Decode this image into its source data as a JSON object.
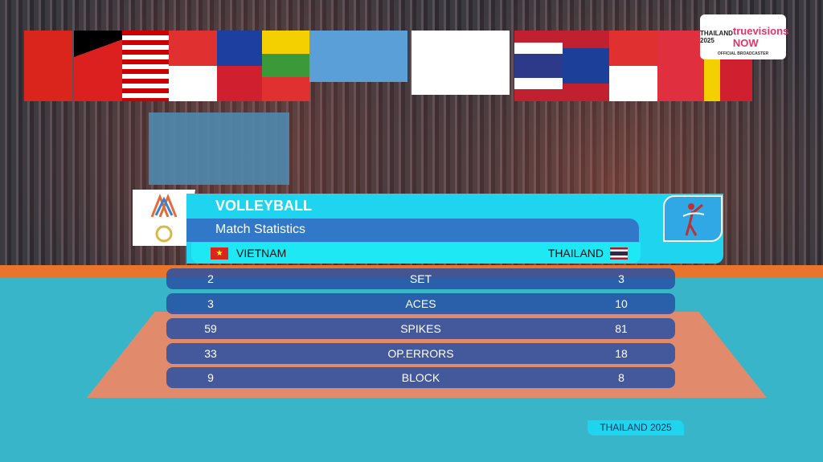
{
  "broadcaster": {
    "event_logo": "THAILAND 2025",
    "brand": "truevisions NOW",
    "caption": "OFFICIAL BROADCASTER"
  },
  "graphic": {
    "title": "VOLLEYBALL",
    "subtitle": "Match Statistics",
    "team_left": "VIETNAM",
    "team_right": "THAILAND",
    "stats": [
      {
        "label": "SET",
        "left": "2",
        "right": "3"
      },
      {
        "label": "ACES",
        "left": "3",
        "right": "10"
      },
      {
        "label": "SPIKES",
        "left": "59",
        "right": "81"
      },
      {
        "label": "OP.ERRORS",
        "left": "33",
        "right": "18"
      },
      {
        "label": "BLOCK",
        "left": "9",
        "right": "8"
      }
    ]
  },
  "footer_tag": "THAILAND 2025",
  "colors": {
    "panel": "#1fd4ee",
    "band": "#3278c8",
    "row": "#2850a5"
  }
}
